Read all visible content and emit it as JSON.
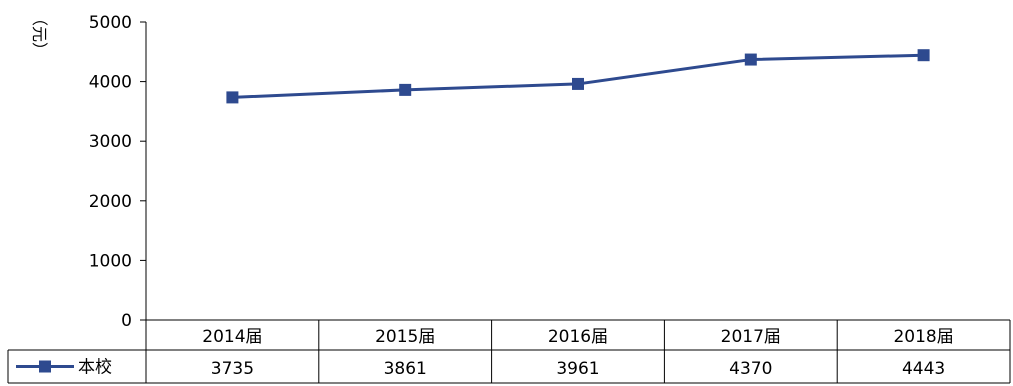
{
  "chart_data": {
    "type": "line",
    "ylabel": "（元）",
    "categories": [
      "2014届",
      "2015届",
      "2016届",
      "2017届",
      "2018届"
    ],
    "series": [
      {
        "name": "本校",
        "values": [
          3735,
          3861,
          3961,
          4370,
          4443
        ],
        "color": "#2e4a8f"
      }
    ],
    "ylim": [
      0,
      5000
    ],
    "yticks": [
      "0",
      "1000",
      "2000",
      "3000",
      "4000",
      "5000"
    ],
    "data_table": true,
    "legend": "in-table-left",
    "grid": false
  }
}
